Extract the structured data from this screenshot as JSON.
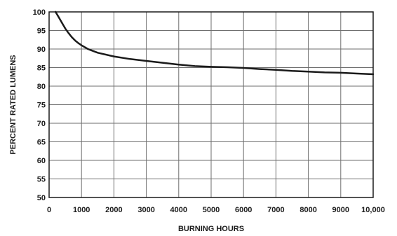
{
  "chart_data": {
    "type": "line",
    "title": "",
    "xlabel": "BURNING HOURS",
    "ylabel": "PERCENT RATED LUMENS",
    "xlim": [
      0,
      10000
    ],
    "ylim": [
      50,
      100
    ],
    "grid": true,
    "x_ticks": [
      0,
      1000,
      2000,
      3000,
      4000,
      5000,
      6000,
      7000,
      8000,
      9000,
      10000
    ],
    "x_tick_labels": [
      "0",
      "1000",
      "2000",
      "3000",
      "4000",
      "5000",
      "6000",
      "7000",
      "8000",
      "9000",
      "10,000"
    ],
    "y_ticks": [
      50,
      55,
      60,
      65,
      70,
      75,
      80,
      85,
      90,
      95,
      100
    ],
    "y_tick_labels": [
      "50",
      "55",
      "60",
      "65",
      "70",
      "75",
      "80",
      "85",
      "90",
      "95",
      "100"
    ],
    "series": [
      {
        "x": [
          200,
          300,
          400,
          500,
          600,
          700,
          800,
          900,
          1000,
          1200,
          1500,
          2000,
          2500,
          3000,
          3500,
          4000,
          4500,
          5000,
          5500,
          6000,
          6500,
          7000,
          7500,
          8000,
          8500,
          9000,
          9500,
          10000
        ],
        "y": [
          100,
          98.5,
          97,
          95.5,
          94.3,
          93.2,
          92.3,
          91.6,
          91,
          90,
          89,
          88,
          87.3,
          86.8,
          86.3,
          85.8,
          85.4,
          85.2,
          85.1,
          84.9,
          84.6,
          84.4,
          84.1,
          83.9,
          83.7,
          83.6,
          83.4,
          83.2
        ]
      }
    ]
  }
}
